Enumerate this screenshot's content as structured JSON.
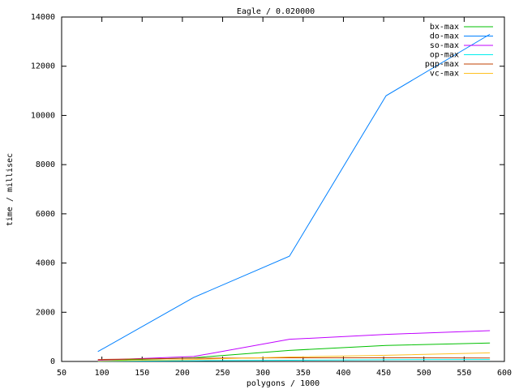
{
  "chart_data": {
    "type": "line",
    "title": "Eagle / 0.020000",
    "x_label": "polygons / 1000",
    "y_label": "time / millisec",
    "x": [
      95,
      214,
      333,
      453,
      582
    ],
    "series": [
      {
        "name": "bx-max",
        "color": "#00c000",
        "values": [
          30,
          150,
          450,
          650,
          750
        ]
      },
      {
        "name": "do-max",
        "color": "#0080ff",
        "values": [
          400,
          2600,
          4280,
          10800,
          13300
        ]
      },
      {
        "name": "so-max",
        "color": "#c000ff",
        "values": [
          50,
          200,
          900,
          1100,
          1250
        ]
      },
      {
        "name": "op-max",
        "color": "#00eeee",
        "values": [
          10,
          30,
          50,
          70,
          80
        ]
      },
      {
        "name": "pqp-max",
        "color": "#c04000",
        "values": [
          80,
          130,
          150,
          150,
          140
        ]
      },
      {
        "name": "vc-max",
        "color": "#ffc020",
        "values": [
          20,
          80,
          180,
          250,
          350
        ]
      }
    ],
    "xlim": [
      50,
      600
    ],
    "xticks": [
      50,
      100,
      150,
      200,
      250,
      300,
      350,
      400,
      450,
      500,
      550,
      600
    ],
    "ylim": [
      0,
      14000
    ],
    "yticks": [
      0,
      2000,
      4000,
      6000,
      8000,
      10000,
      12000,
      14000
    ],
    "grid": false,
    "legend": "top-right"
  }
}
